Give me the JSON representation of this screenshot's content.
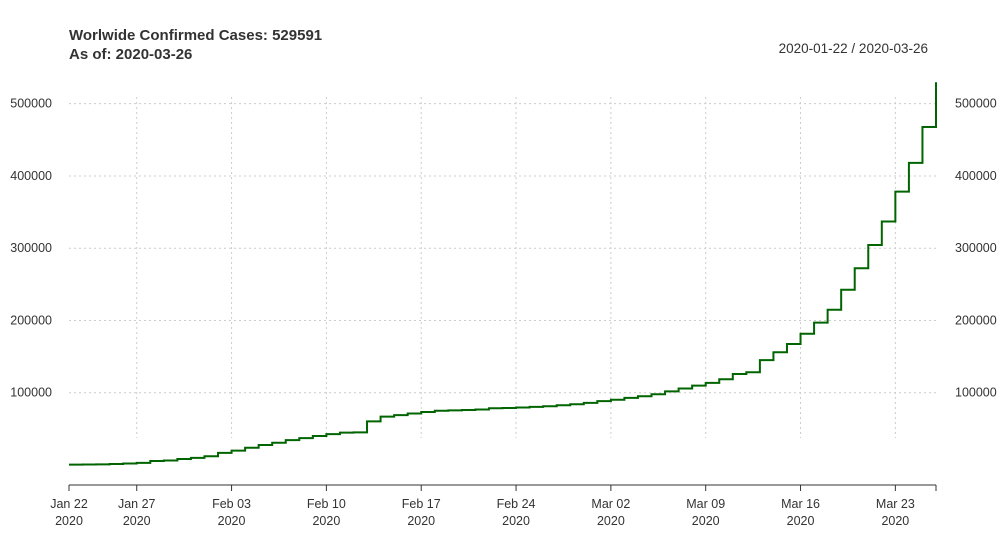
{
  "header": {
    "title_line1": "Worlwide Confirmed Cases: 529591",
    "title_line2": "As of: 2020-03-26",
    "date_range": "2020-01-22 / 2020-03-26"
  },
  "colors": {
    "series": "#006400",
    "grid": "#cccccc",
    "axis": "#333333"
  },
  "chart_data": {
    "type": "line",
    "step": true,
    "title": "Worlwide Confirmed Cases: 529591",
    "subtitle": "As of: 2020-03-26",
    "range_label": "2020-01-22 / 2020-03-26",
    "xlim": [
      "2020-01-22",
      "2020-03-26"
    ],
    "ylim": [
      0,
      530000
    ],
    "grid": true,
    "y_axes": "left and right",
    "x_ticks": [
      {
        "date": "2020-01-22",
        "label1": "Jan 22",
        "label2": "2020",
        "grid": false
      },
      {
        "date": "2020-01-27",
        "label1": "Jan 27",
        "label2": "2020",
        "grid": true
      },
      {
        "date": "2020-02-03",
        "label1": "Feb 03",
        "label2": "2020",
        "grid": true
      },
      {
        "date": "2020-02-10",
        "label1": "Feb 10",
        "label2": "2020",
        "grid": true
      },
      {
        "date": "2020-02-17",
        "label1": "Feb 17",
        "label2": "2020",
        "grid": true
      },
      {
        "date": "2020-02-24",
        "label1": "Feb 24",
        "label2": "2020",
        "grid": true
      },
      {
        "date": "2020-03-02",
        "label1": "Mar 02",
        "label2": "2020",
        "grid": true
      },
      {
        "date": "2020-03-09",
        "label1": "Mar 09",
        "label2": "2020",
        "grid": true
      },
      {
        "date": "2020-03-16",
        "label1": "Mar 16",
        "label2": "2020",
        "grid": true
      },
      {
        "date": "2020-03-23",
        "label1": "Mar 23",
        "label2": "2020",
        "grid": true
      },
      {
        "date": "2020-03-26",
        "label1": "",
        "label2": "",
        "grid": false
      }
    ],
    "y_ticks": [
      {
        "value": 100000,
        "label": "100000"
      },
      {
        "value": 200000,
        "label": "200000"
      },
      {
        "value": 300000,
        "label": "300000"
      },
      {
        "value": 400000,
        "label": "400000"
      },
      {
        "value": 500000,
        "label": "500000"
      }
    ],
    "series": [
      {
        "dates": [
          "2020-01-22",
          "2020-01-23",
          "2020-01-24",
          "2020-01-25",
          "2020-01-26",
          "2020-01-27",
          "2020-01-28",
          "2020-01-29",
          "2020-01-30",
          "2020-01-31",
          "2020-02-01",
          "2020-02-02",
          "2020-02-03",
          "2020-02-04",
          "2020-02-05",
          "2020-02-06",
          "2020-02-07",
          "2020-02-08",
          "2020-02-09",
          "2020-02-10",
          "2020-02-11",
          "2020-02-12",
          "2020-02-13",
          "2020-02-14",
          "2020-02-15",
          "2020-02-16",
          "2020-02-17",
          "2020-02-18",
          "2020-02-19",
          "2020-02-20",
          "2020-02-21",
          "2020-02-22",
          "2020-02-23",
          "2020-02-24",
          "2020-02-25",
          "2020-02-26",
          "2020-02-27",
          "2020-02-28",
          "2020-02-29",
          "2020-03-01",
          "2020-03-02",
          "2020-03-03",
          "2020-03-04",
          "2020-03-05",
          "2020-03-06",
          "2020-03-07",
          "2020-03-08",
          "2020-03-09",
          "2020-03-10",
          "2020-03-11",
          "2020-03-12",
          "2020-03-13",
          "2020-03-14",
          "2020-03-15",
          "2020-03-16",
          "2020-03-17",
          "2020-03-18",
          "2020-03-19",
          "2020-03-20",
          "2020-03-21",
          "2020-03-22",
          "2020-03-23",
          "2020-03-24",
          "2020-03-25",
          "2020-03-26"
        ],
        "values": [
          555,
          654,
          941,
          1434,
          2118,
          2927,
          5578,
          6166,
          8234,
          9927,
          12038,
          16787,
          19881,
          23892,
          27635,
          30794,
          34391,
          37120,
          40150,
          42762,
          44802,
          45221,
          60368,
          66885,
          69030,
          71224,
          73258,
          75136,
          75639,
          76197,
          76819,
          78572,
          78958,
          79561,
          80406,
          81388,
          82746,
          84112,
          86011,
          88369,
          90306,
          92840,
          95120,
          97886,
          101801,
          105847,
          109821,
          113590,
          118620,
          125875,
          128352,
          145205,
          156101,
          167454,
          181574,
          197102,
          214821,
          242570,
          272208,
          304507,
          336953,
          378235,
          418045,
          467653,
          529591
        ]
      }
    ]
  }
}
